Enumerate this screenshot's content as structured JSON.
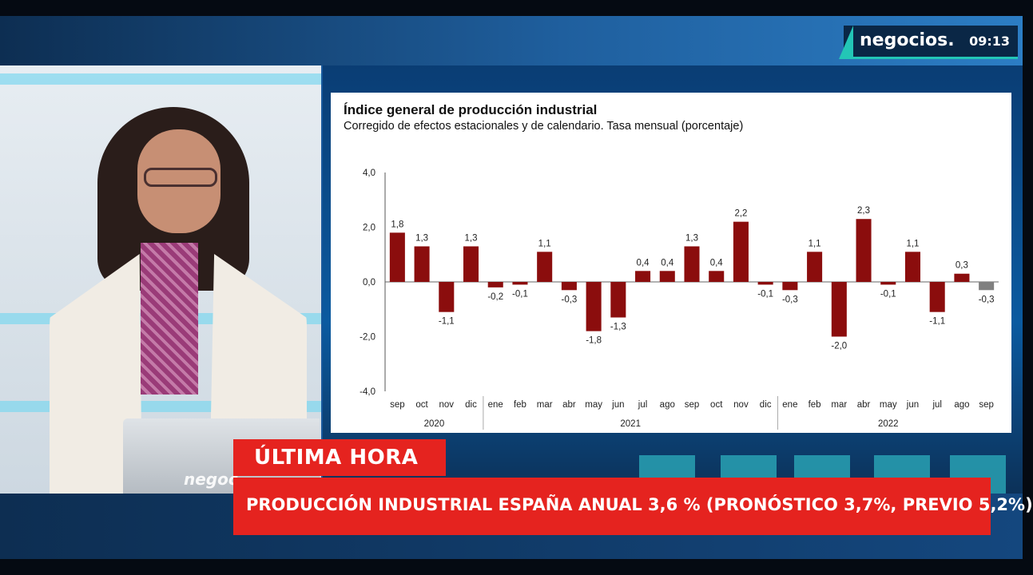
{
  "brand": {
    "name": "negocios.",
    "time": "09:13"
  },
  "laptop_logo": "negoc",
  "breaking": {
    "tag": "ÚLTIMA HORA",
    "headline": "PRODUCCIÓN INDUSTRIAL ESPAÑA ANUAL 3,6 % (PRONÓSTICO 3,7%, PREVIO 5,2%)"
  },
  "colors": {
    "bar_positive": "#8b0d0d",
    "bar_last": "#808080",
    "breaking_red": "#e5231f",
    "accent_teal": "#23c6b6"
  },
  "chart_data": {
    "type": "bar",
    "title": "Índice general de producción industrial",
    "subtitle": "Corregido de efectos estacionales y de calendario. Tasa mensual (porcentaje)",
    "ylim": [
      -4.0,
      4.0
    ],
    "yticks": [
      "4,0",
      "2,0",
      "0,0",
      "-2,0",
      "-4,0"
    ],
    "ytick_values": [
      4,
      2,
      0,
      -2,
      -4
    ],
    "categories": [
      "sep",
      "oct",
      "nov",
      "dic",
      "ene",
      "feb",
      "mar",
      "abr",
      "may",
      "jun",
      "jul",
      "ago",
      "sep",
      "oct",
      "nov",
      "dic",
      "ene",
      "feb",
      "mar",
      "abr",
      "may",
      "jun",
      "jul",
      "ago",
      "sep"
    ],
    "values": [
      1.8,
      1.3,
      -1.1,
      1.3,
      -0.2,
      -0.1,
      1.1,
      -0.3,
      -1.8,
      -1.3,
      0.4,
      0.4,
      1.3,
      0.4,
      2.2,
      -0.1,
      -0.3,
      1.1,
      -2.0,
      2.3,
      -0.1,
      1.1,
      -1.1,
      0.3,
      -0.3
    ],
    "labels": [
      "1,8",
      "1,3",
      "-1,1",
      "1,3",
      "-0,2",
      "-0,1",
      "1,1",
      "-0,3",
      "-1,8",
      "-1,3",
      "0,4",
      "0,4",
      "1,3",
      "0,4",
      "2,2",
      "-0,1",
      "-0,3",
      "1,1",
      "-2,0",
      "2,3",
      "-0,1",
      "1,1",
      "-1,1",
      "0,3",
      "-0,3"
    ],
    "year_groups": [
      {
        "label": "2020",
        "start": 0,
        "count": 4
      },
      {
        "label": "2021",
        "start": 4,
        "count": 12
      },
      {
        "label": "2022",
        "start": 16,
        "count": 9
      }
    ],
    "highlight_last": true,
    "grid": false
  }
}
